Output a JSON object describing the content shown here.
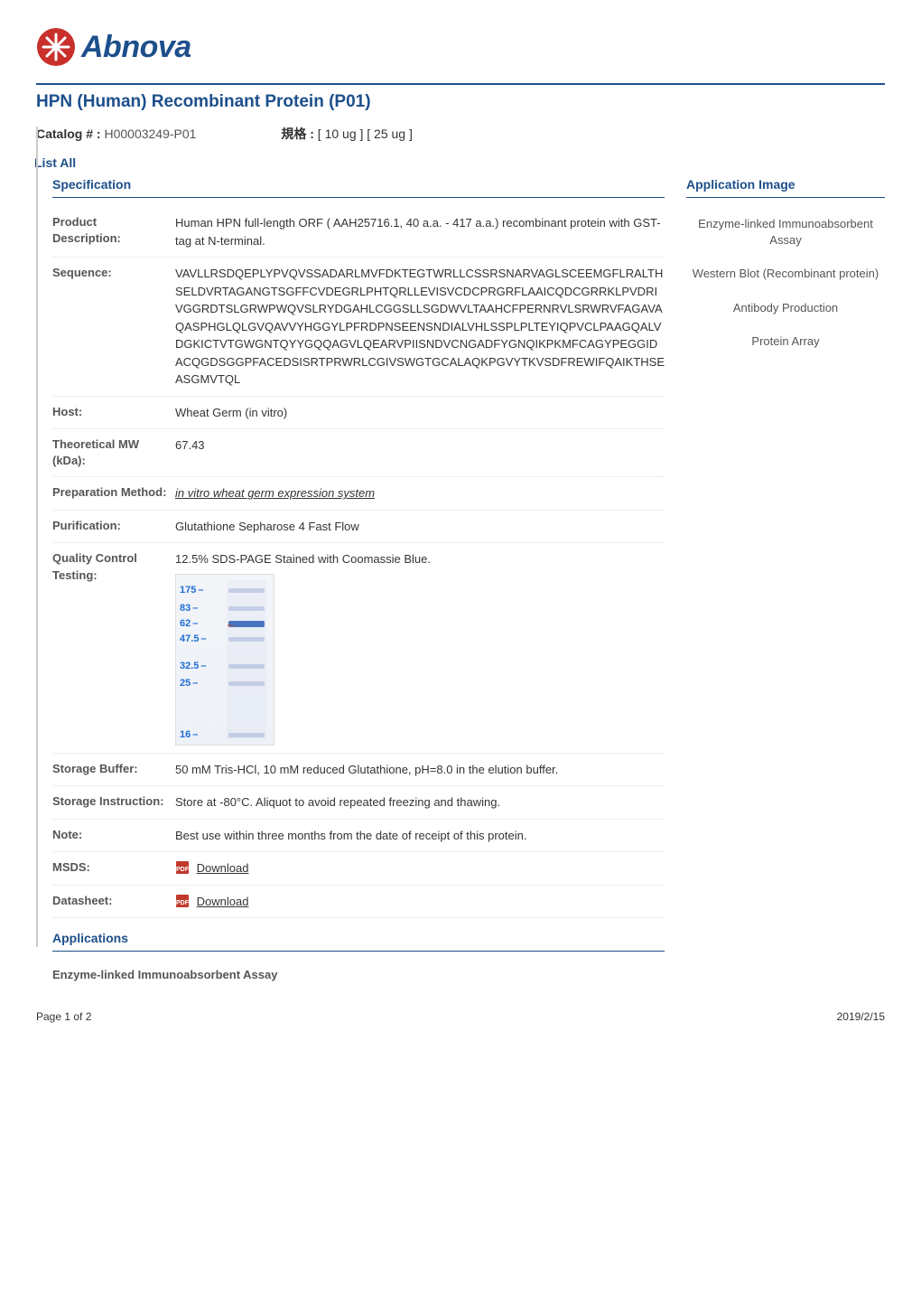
{
  "brand": {
    "name": "Abnova",
    "logo_color": "#1d4f8b",
    "badge_color": "#c9302c"
  },
  "title": {
    "text": "HPN (Human) Recombinant Protein (P01)",
    "color": "#1d4f8b",
    "rule_color": "#1d4f8b"
  },
  "catalog": {
    "label": "Catalog # :",
    "value": "H00003249-P01",
    "spec_label": "規格 :",
    "spec_value": "[ 10 ug ] [ 25 ug ]"
  },
  "list_all": {
    "label": "List All",
    "color": "#1d4f8b"
  },
  "sections": {
    "specification": {
      "label": "Specification",
      "color": "#1d4f8b"
    },
    "applications": {
      "label": "Applications",
      "color": "#1d4f8b"
    },
    "app_image": {
      "label": "Application Image",
      "color": "#1d4f8b"
    }
  },
  "spec_rows": {
    "product_description": {
      "label": "Product Description:",
      "value": "Human HPN full-length ORF ( AAH25716.1, 40 a.a. - 417 a.a.) recombinant protein with GST-tag at N-terminal."
    },
    "sequence": {
      "label": "Sequence:",
      "value": "VAVLLRSDQEPLYPVQVSSADARLMVFDKTEGTWRLLCSSRSNARVAGLSCEEMGFLRALTHSELDVRTAGANGTSGFFCVDEGRLPHTQRLLEVISVCDCPRGRFLAAICQDCGRRKLPVDRIVGGRDTSLGRWPWQVSLRYDGAHLCGGSLLSGDWVLTAAHCFPERNRVLSRWRVFAGAVAQASPHGLQLGVQAVVYHGGYLPFRDPNSEENSNDIALVHLSSPLPLTEYIQPVCLPAAGQALVDGKICTVTGWGNTQYYGQQAGVLQEARVPIISNDVCNGADFYGNQIKPKMFCAGYPEGGIDACQGDSGGPFACEDSISRTPRWRLCGIVSWGTGCALAQKPGVYTKVSDFREWIFQAIKTHSEASGMVTQL"
    },
    "host": {
      "label": "Host:",
      "value": "Wheat Germ (in vitro)"
    },
    "theoretical_mw": {
      "label": "Theoretical MW (kDa):",
      "value": "67.43"
    },
    "preparation_method": {
      "label": "Preparation Method:",
      "value": "in vitro wheat germ expression system",
      "is_link": true
    },
    "purification": {
      "label": "Purification:",
      "value": "Glutathione Sepharose 4 Fast Flow"
    },
    "quality_control": {
      "label": "Quality Control Testing:",
      "value": "12.5% SDS-PAGE Stained with Coomassie Blue."
    },
    "storage_buffer": {
      "label": "Storage Buffer:",
      "value": "50 mM Tris-HCl, 10 mM reduced Glutathione, pH=8.0 in the elution buffer."
    },
    "storage_instruction": {
      "label": "Storage Instruction:",
      "value": "Store at -80°C. Aliquot to avoid repeated freezing and thawing."
    },
    "note": {
      "label": "Note:",
      "value": "Best use within three months from the date of receipt of this protein."
    },
    "msds": {
      "label": "MSDS:",
      "link_text": "Download"
    },
    "datasheet": {
      "label": "Datasheet:",
      "link_text": "Download"
    }
  },
  "gel": {
    "tick_color": "#1d6fd6",
    "band_color": "#7a93c9",
    "main_band_color": "#3f6fbf",
    "arrow_color": "#d13b1f",
    "ticks": [
      {
        "label": "175",
        "top_pct": 9
      },
      {
        "label": "83",
        "top_pct": 20
      },
      {
        "label": "62",
        "top_pct": 29
      },
      {
        "label": "47.5",
        "top_pct": 38
      },
      {
        "label": "32.5",
        "top_pct": 54
      },
      {
        "label": "25",
        "top_pct": 64
      },
      {
        "label": "16",
        "top_pct": 94
      }
    ],
    "arrow_top_pct": 29,
    "main_band_top_pct": 29
  },
  "pdf_icon": {
    "fill": "#c0392b"
  },
  "side_apps": [
    "Enzyme-linked Immunoabsorbent Assay",
    "Western Blot (Recombinant protein)",
    "Antibody Production",
    "Protein Array"
  ],
  "applications_sub": "Enzyme-linked Immunoabsorbent Assay",
  "footer": {
    "left": "Page 1 of 2",
    "right": "2019/2/15"
  }
}
